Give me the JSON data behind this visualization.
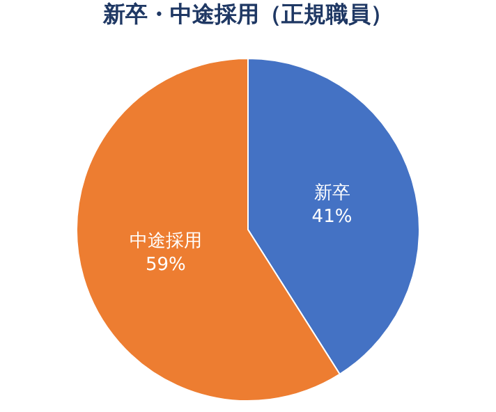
{
  "chart_data": {
    "type": "pie",
    "title": "新卒・中途採用（正規職員）",
    "categories": [
      "新卒",
      "中途採用"
    ],
    "values": [
      41,
      59
    ],
    "value_labels": [
      "41%",
      "59%"
    ],
    "colors": [
      "#4472c4",
      "#ed7d31"
    ],
    "legend": false
  }
}
